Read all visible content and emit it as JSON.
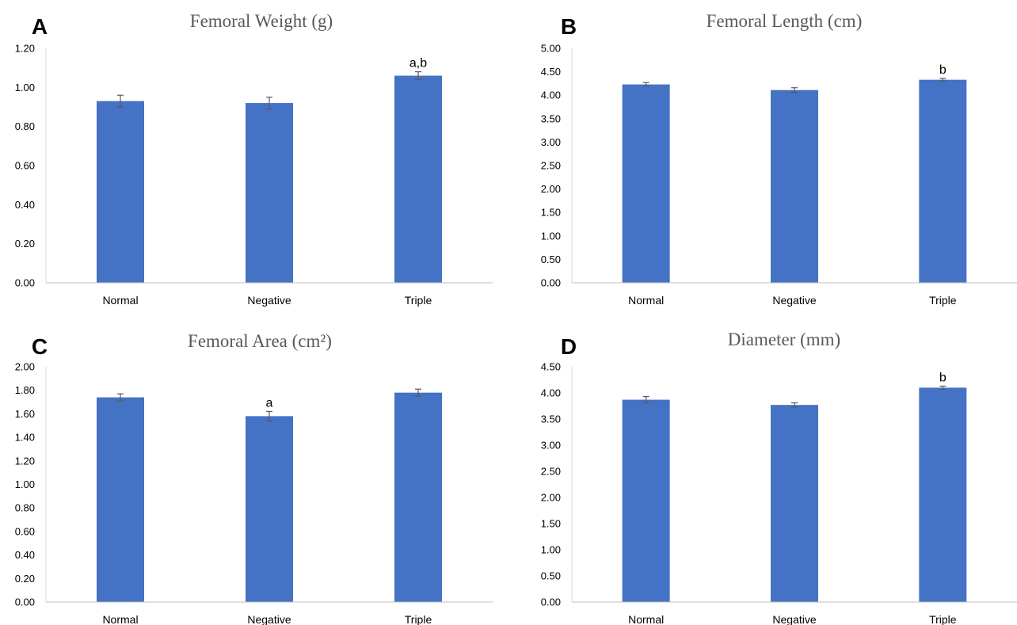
{
  "chart_data": [
    {
      "panel": "A",
      "type": "bar",
      "title": "Femoral Weight (g)",
      "categories": [
        "Normal",
        "Negative",
        "Triple"
      ],
      "values": [
        0.93,
        0.92,
        1.06
      ],
      "errors": [
        0.03,
        0.03,
        0.02
      ],
      "annotations": [
        "",
        "",
        "a,b"
      ],
      "yticks": [
        "0.00",
        "0.20",
        "0.40",
        "0.60",
        "0.80",
        "1.00",
        "1.20"
      ],
      "ylim": [
        0,
        1.2
      ],
      "color": "#4472C4",
      "grid": false
    },
    {
      "panel": "B",
      "type": "bar",
      "title": "Femoral Length (cm)",
      "categories": [
        "Normal",
        "Negative",
        "Triple"
      ],
      "values": [
        4.23,
        4.11,
        4.33
      ],
      "errors": [
        0.04,
        0.05,
        0.03
      ],
      "annotations": [
        "",
        "",
        "b"
      ],
      "yticks": [
        "0.00",
        "0.50",
        "1.00",
        "1.50",
        "2.00",
        "2.50",
        "3.00",
        "3.50",
        "4.00",
        "4.50",
        "5.00"
      ],
      "ylim": [
        0,
        5
      ],
      "color": "#4472C4",
      "grid": false
    },
    {
      "panel": "C",
      "type": "bar",
      "title": "Femoral Area (cm²)",
      "categories": [
        "Normal",
        "Negative",
        "Triple"
      ],
      "values": [
        1.74,
        1.58,
        1.78
      ],
      "errors": [
        0.03,
        0.04,
        0.03
      ],
      "annotations": [
        "",
        "a",
        ""
      ],
      "yticks": [
        "0.00",
        "0.20",
        "0.40",
        "0.60",
        "0.80",
        "1.00",
        "1.20",
        "1.40",
        "1.60",
        "1.80",
        "2.00"
      ],
      "ylim": [
        0,
        2
      ],
      "color": "#4472C4",
      "grid": false
    },
    {
      "panel": "D",
      "type": "bar",
      "title": "Diameter (mm)",
      "categories": [
        "Normal",
        "Negative",
        "Triple"
      ],
      "values": [
        3.87,
        3.77,
        4.1
      ],
      "errors": [
        0.06,
        0.04,
        0.03
      ],
      "annotations": [
        "",
        "",
        "b"
      ],
      "yticks": [
        "0.00",
        "0.50",
        "1.00",
        "1.50",
        "2.00",
        "2.50",
        "3.00",
        "3.50",
        "4.00",
        "4.50"
      ],
      "ylim": [
        0,
        4.5
      ],
      "color": "#4472C4",
      "grid": false
    }
  ]
}
